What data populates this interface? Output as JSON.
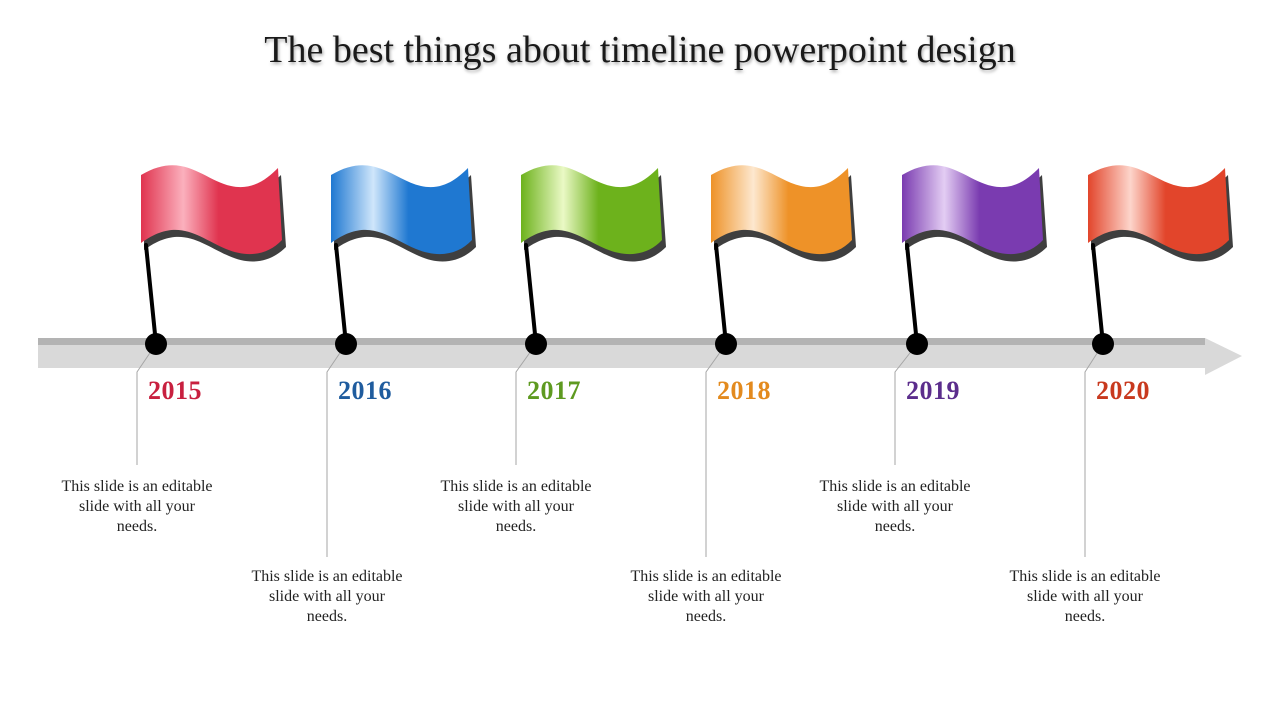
{
  "title": "The best things about timeline powerpoint design",
  "milestones": [
    {
      "year": "2015",
      "text": "This slide is an editable slide with all your needs.",
      "color": "#e0344f",
      "light": "#fbb0bd",
      "textColor": "#c8203f"
    },
    {
      "year": "2016",
      "text": "This slide is an editable slide with all your needs.",
      "color": "#1f78d1",
      "light": "#cfe6fb",
      "textColor": "#1f5c9e"
    },
    {
      "year": "2017",
      "text": "This slide is an editable slide with all your needs.",
      "color": "#6db21c",
      "light": "#eaf9c5",
      "textColor": "#5e9a20"
    },
    {
      "year": "2018",
      "text": "This slide is an editable slide with all your needs.",
      "color": "#ee9228",
      "light": "#fde8cf",
      "textColor": "#e38a1e"
    },
    {
      "year": "2019",
      "text": "This slide is an editable slide with all your needs.",
      "color": "#7a3bb0",
      "light": "#e3cdf3",
      "textColor": "#5b2d8c"
    },
    {
      "year": "2020",
      "text": "This slide is an editable slide with all your needs.",
      "color": "#e2452b",
      "light": "#fdd5cb",
      "textColor": "#c8391e"
    }
  ]
}
